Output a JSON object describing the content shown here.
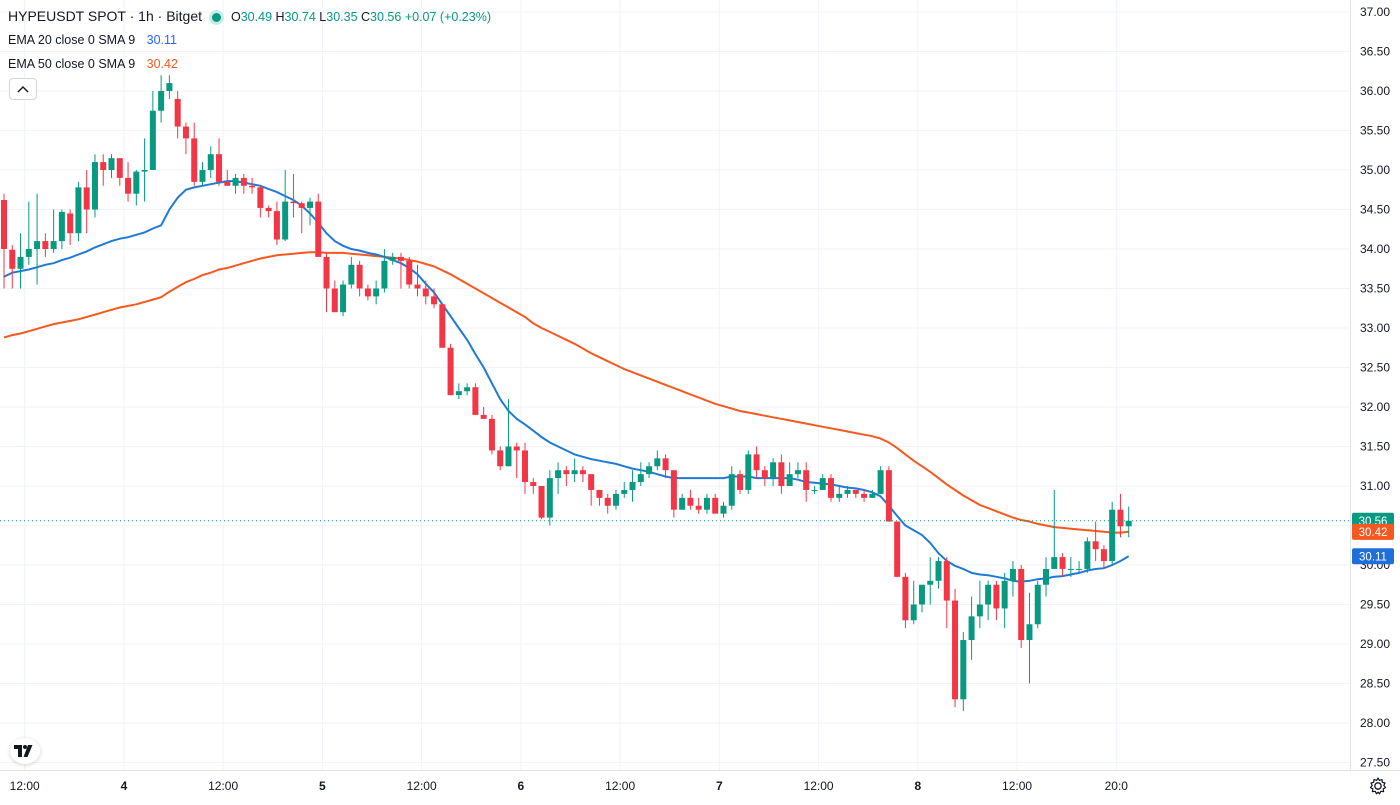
{
  "legend": {
    "symbol": "HYPEUSDT SPOT · 1h · Bitget",
    "o_label": "O",
    "o_value": "30.49",
    "h_label": "H",
    "h_value": "30.74",
    "l_label": "L",
    "l_value": "30.35",
    "c_label": "C",
    "c_value": "30.56",
    "change": "+0.07 (+0.23%)",
    "ema20_label": "EMA 20 close 0 SMA 9",
    "ema20_value": "30.11",
    "ema50_label": "EMA 50 close 0 SMA 9",
    "ema50_value": "30.42"
  },
  "colors": {
    "up": "#089981",
    "down": "#f23645",
    "ema20": "#2962ff",
    "ema20_line": "#1e7ad6",
    "ema50": "#f7581f",
    "grid": "#f0f3fa",
    "text": "#131722"
  },
  "icons": {
    "collapse": "chevron-up-icon",
    "logo": "tradingview-logo-icon",
    "settings": "gear-icon"
  },
  "chart_data": {
    "type": "candlestick",
    "title": "HYPEUSDT SPOT · 1h · Bitget",
    "ylim": [
      27.6,
      37.0
    ],
    "y_ticks": [
      "37.00",
      "36.50",
      "36.00",
      "35.50",
      "35.00",
      "34.50",
      "34.00",
      "33.50",
      "33.00",
      "32.50",
      "32.00",
      "31.50",
      "31.00",
      "30.50",
      "30.00",
      "29.50",
      "29.00",
      "28.50",
      "28.00",
      "27.50"
    ],
    "x_ticks": [
      {
        "index": 2.5,
        "label": "12:00"
      },
      {
        "index": 14.5,
        "label": "4"
      },
      {
        "index": 26.5,
        "label": "12:00"
      },
      {
        "index": 38.5,
        "label": "5"
      },
      {
        "index": 50.5,
        "label": "12:00"
      },
      {
        "index": 62.5,
        "label": "6"
      },
      {
        "index": 74.5,
        "label": "12:00"
      },
      {
        "index": 86.5,
        "label": "7"
      },
      {
        "index": 98.5,
        "label": "12:00"
      },
      {
        "index": 110.5,
        "label": "8"
      },
      {
        "index": 122.5,
        "label": "12:00"
      },
      {
        "index": 134.5,
        "label": "20:0"
      }
    ],
    "price_labels": [
      {
        "value": 30.56,
        "text": "30.56",
        "series": "last"
      },
      {
        "value": 30.42,
        "text": "30.42",
        "series": "ema50"
      },
      {
        "value": 30.11,
        "text": "30.11",
        "series": "ema20"
      }
    ],
    "last_price": 30.56,
    "candles": [
      [
        34.62,
        34.0,
        34.7,
        33.5
      ],
      [
        33.99,
        33.75,
        34.05,
        33.5
      ],
      [
        33.75,
        33.9,
        34.2,
        33.5
      ],
      [
        33.9,
        34.0,
        34.6,
        33.8
      ],
      [
        34.0,
        34.1,
        34.7,
        33.55
      ],
      [
        34.1,
        34.0,
        34.2,
        33.9
      ],
      [
        34.0,
        34.1,
        34.5,
        33.95
      ],
      [
        34.1,
        34.47,
        34.5,
        34.0
      ],
      [
        34.45,
        34.2,
        34.5,
        34.05
      ],
      [
        34.2,
        34.78,
        34.85,
        34.1
      ],
      [
        34.78,
        34.5,
        35.0,
        34.2
      ],
      [
        34.5,
        35.1,
        35.2,
        34.4
      ],
      [
        35.1,
        35.0,
        35.2,
        34.8
      ],
      [
        35.0,
        35.15,
        35.2,
        34.9
      ],
      [
        35.15,
        34.9,
        35.1,
        34.8
      ],
      [
        34.9,
        34.7,
        35.1,
        34.6
      ],
      [
        34.7,
        34.98,
        35.0,
        34.55
      ],
      [
        34.98,
        35.0,
        35.4,
        34.6
      ],
      [
        35.0,
        35.75,
        36.0,
        35.0
      ],
      [
        35.75,
        36.0,
        36.2,
        35.6
      ],
      [
        36.0,
        36.1,
        36.2,
        35.9
      ],
      [
        35.9,
        35.55,
        36.0,
        35.4
      ],
      [
        35.55,
        35.4,
        35.6,
        35.2
      ],
      [
        35.4,
        34.85,
        35.6,
        34.8
      ],
      [
        34.85,
        35.0,
        35.1,
        34.8
      ],
      [
        35.0,
        35.2,
        35.3,
        34.9
      ],
      [
        35.2,
        34.85,
        35.4,
        34.8
      ],
      [
        34.85,
        34.8,
        35.0,
        34.8
      ],
      [
        34.8,
        34.9,
        34.95,
        34.7
      ],
      [
        34.9,
        34.8,
        34.95,
        34.7
      ],
      [
        34.8,
        34.78,
        34.9,
        34.7
      ],
      [
        34.78,
        34.52,
        34.8,
        34.4
      ],
      [
        34.52,
        34.48,
        34.55,
        34.4
      ],
      [
        34.48,
        34.12,
        34.6,
        34.05
      ],
      [
        34.12,
        34.6,
        35.0,
        34.1
      ],
      [
        34.6,
        34.58,
        34.95,
        34.4
      ],
      [
        34.58,
        34.52,
        34.6,
        34.2
      ],
      [
        34.52,
        34.6,
        34.65,
        34.3
      ],
      [
        34.6,
        33.9,
        34.7,
        33.9
      ],
      [
        33.9,
        33.5,
        33.95,
        33.2
      ],
      [
        33.5,
        33.2,
        33.6,
        33.3
      ],
      [
        33.2,
        33.55,
        33.6,
        33.15
      ],
      [
        33.55,
        33.8,
        33.9,
        33.5
      ],
      [
        33.8,
        33.5,
        33.85,
        33.4
      ],
      [
        33.5,
        33.4,
        33.55,
        33.35
      ],
      [
        33.4,
        33.5,
        33.6,
        33.3
      ],
      [
        33.5,
        33.85,
        34.0,
        33.45
      ],
      [
        33.85,
        33.9,
        33.95,
        33.8
      ],
      [
        33.9,
        33.85,
        33.95,
        33.5
      ],
      [
        33.85,
        33.55,
        33.9,
        33.5
      ],
      [
        33.55,
        33.5,
        33.8,
        33.4
      ],
      [
        33.5,
        33.4,
        33.6,
        33.3
      ],
      [
        33.4,
        33.3,
        33.5,
        33.25
      ],
      [
        33.3,
        32.75,
        33.3,
        32.75
      ],
      [
        32.75,
        32.15,
        32.8,
        32.15
      ],
      [
        32.15,
        32.2,
        32.3,
        32.1
      ],
      [
        32.2,
        32.25,
        32.3,
        32.15
      ],
      [
        32.25,
        31.9,
        32.3,
        31.9
      ],
      [
        31.9,
        31.85,
        32.0,
        31.9
      ],
      [
        31.85,
        31.45,
        31.9,
        31.4
      ],
      [
        31.45,
        31.25,
        31.5,
        31.2
      ],
      [
        31.25,
        31.5,
        32.1,
        31.25
      ],
      [
        31.5,
        31.45,
        31.55,
        31.1
      ],
      [
        31.45,
        31.05,
        31.55,
        30.9
      ],
      [
        31.05,
        31.0,
        31.1,
        30.9
      ],
      [
        31.0,
        30.6,
        31.0,
        30.58
      ],
      [
        30.6,
        31.1,
        31.2,
        30.5
      ],
      [
        31.1,
        31.2,
        31.3,
        30.9
      ],
      [
        31.2,
        31.15,
        31.25,
        31.0
      ],
      [
        31.15,
        31.2,
        31.35,
        31.05
      ],
      [
        31.2,
        31.15,
        31.25,
        31.05
      ],
      [
        31.15,
        30.95,
        31.15,
        30.75
      ],
      [
        30.95,
        30.85,
        30.95,
        30.75
      ],
      [
        30.85,
        30.75,
        30.9,
        30.65
      ],
      [
        30.75,
        30.9,
        30.95,
        30.7
      ],
      [
        30.9,
        30.95,
        31.05,
        30.85
      ],
      [
        30.95,
        31.05,
        31.2,
        30.8
      ],
      [
        31.05,
        31.15,
        31.3,
        31.0
      ],
      [
        31.15,
        31.25,
        31.3,
        31.1
      ],
      [
        31.25,
        31.35,
        31.45,
        31.2
      ],
      [
        31.35,
        31.2,
        31.4,
        31.1
      ],
      [
        31.2,
        30.7,
        31.2,
        30.6
      ],
      [
        30.7,
        30.85,
        30.9,
        30.7
      ],
      [
        30.85,
        30.75,
        30.95,
        30.7
      ],
      [
        30.75,
        30.7,
        30.85,
        30.65
      ],
      [
        30.7,
        30.85,
        30.9,
        30.65
      ],
      [
        30.85,
        30.65,
        30.9,
        30.65
      ],
      [
        30.65,
        30.75,
        30.8,
        30.6
      ],
      [
        30.75,
        31.15,
        31.25,
        30.7
      ],
      [
        31.15,
        30.95,
        31.2,
        30.9
      ],
      [
        30.95,
        31.4,
        31.45,
        30.9
      ],
      [
        31.4,
        31.2,
        31.5,
        31.1
      ],
      [
        31.2,
        31.1,
        31.25,
        31.0
      ],
      [
        31.1,
        31.3,
        31.35,
        31.0
      ],
      [
        31.3,
        31.0,
        31.4,
        30.9
      ],
      [
        31.0,
        31.15,
        31.3,
        31.0
      ],
      [
        31.15,
        31.2,
        31.3,
        31.1
      ],
      [
        31.2,
        30.95,
        31.3,
        30.8
      ],
      [
        30.95,
        30.95,
        31.0,
        30.9
      ],
      [
        30.95,
        31.1,
        31.15,
        31.0
      ],
      [
        31.1,
        30.85,
        31.15,
        30.8
      ],
      [
        30.85,
        30.9,
        31.0,
        30.8
      ],
      [
        30.9,
        30.95,
        31.0,
        30.85
      ],
      [
        30.95,
        30.9,
        30.95,
        30.85
      ],
      [
        30.9,
        30.85,
        30.95,
        30.8
      ],
      [
        30.85,
        30.9,
        30.95,
        30.85
      ],
      [
        30.9,
        31.2,
        31.25,
        30.9
      ],
      [
        31.2,
        30.55,
        31.25,
        30.55
      ],
      [
        30.55,
        29.85,
        30.55,
        29.85
      ],
      [
        29.85,
        29.3,
        29.9,
        29.2
      ],
      [
        29.3,
        29.5,
        29.8,
        29.25
      ],
      [
        29.5,
        29.75,
        29.75,
        29.4
      ],
      [
        29.75,
        29.8,
        30.1,
        29.5
      ],
      [
        29.8,
        30.05,
        30.1,
        29.7
      ],
      [
        30.05,
        29.55,
        30.1,
        29.2
      ],
      [
        29.55,
        28.3,
        29.7,
        28.2
      ],
      [
        28.3,
        29.05,
        29.15,
        28.15
      ],
      [
        29.05,
        29.35,
        29.6,
        28.8
      ],
      [
        29.35,
        29.5,
        29.8,
        29.2
      ],
      [
        29.5,
        29.75,
        29.8,
        29.3
      ],
      [
        29.75,
        29.45,
        29.8,
        29.3
      ],
      [
        29.45,
        29.8,
        29.9,
        29.2
      ],
      [
        29.8,
        29.95,
        30.05,
        29.6
      ],
      [
        29.95,
        29.05,
        30.0,
        28.95
      ],
      [
        29.05,
        29.25,
        29.65,
        28.5
      ],
      [
        29.25,
        29.75,
        29.8,
        29.2
      ],
      [
        29.75,
        29.95,
        30.1,
        29.6
      ],
      [
        29.95,
        30.1,
        30.95,
        29.95
      ],
      [
        30.1,
        29.95,
        30.15,
        29.85
      ],
      [
        29.95,
        29.95,
        30.1,
        29.85
      ],
      [
        29.95,
        29.95,
        30.05,
        29.9
      ],
      [
        29.95,
        30.3,
        30.35,
        29.9
      ],
      [
        30.3,
        30.2,
        30.55,
        30.05
      ],
      [
        30.2,
        30.05,
        30.25,
        29.95
      ],
      [
        30.05,
        30.7,
        30.8,
        30.0
      ],
      [
        30.7,
        30.49,
        30.9,
        30.35
      ],
      [
        30.49,
        30.56,
        30.74,
        30.35
      ]
    ],
    "ema20": [
      33.65,
      33.7,
      33.72,
      33.74,
      33.77,
      33.8,
      33.82,
      33.86,
      33.89,
      33.93,
      33.97,
      34.02,
      34.06,
      34.1,
      34.13,
      34.15,
      34.18,
      34.21,
      34.26,
      34.3,
      34.5,
      34.65,
      34.75,
      34.78,
      34.8,
      34.82,
      34.84,
      34.86,
      34.86,
      34.84,
      34.82,
      34.8,
      34.76,
      34.72,
      34.67,
      34.62,
      34.55,
      34.45,
      34.33,
      34.2,
      34.1,
      34.04,
      34.0,
      33.98,
      33.95,
      33.93,
      33.9,
      33.86,
      33.82,
      33.76,
      33.68,
      33.56,
      33.45,
      33.3,
      33.15,
      33.0,
      32.85,
      32.67,
      32.5,
      32.3,
      32.1,
      31.95,
      31.85,
      31.78,
      31.7,
      31.62,
      31.55,
      31.5,
      31.45,
      31.4,
      31.37,
      31.34,
      31.32,
      31.3,
      31.28,
      31.25,
      31.22,
      31.2,
      31.18,
      31.15,
      31.12,
      31.1,
      31.1,
      31.1,
      31.1,
      31.1,
      31.1,
      31.1,
      31.12,
      31.12,
      31.12,
      31.1,
      31.1,
      31.1,
      31.1,
      31.1,
      31.08,
      31.05,
      31.04,
      31.03,
      31.02,
      31.0,
      30.98,
      30.97,
      30.95,
      30.92,
      30.87,
      30.75,
      30.62,
      30.5,
      30.44,
      30.38,
      30.28,
      30.15,
      30.05,
      29.99,
      29.95,
      29.9,
      29.88,
      29.87,
      29.85,
      29.83,
      29.8,
      29.79,
      29.8,
      29.82,
      29.83,
      29.85,
      29.86,
      29.88,
      29.9,
      29.93,
      29.95,
      29.96,
      30.0,
      30.05,
      30.11
    ],
    "ema50": [
      32.88,
      32.91,
      32.93,
      32.96,
      32.99,
      33.02,
      33.05,
      33.07,
      33.09,
      33.11,
      33.14,
      33.17,
      33.2,
      33.23,
      33.26,
      33.28,
      33.3,
      33.33,
      33.36,
      33.39,
      33.46,
      33.52,
      33.58,
      33.62,
      33.67,
      33.7,
      33.74,
      33.76,
      33.79,
      33.82,
      33.85,
      33.88,
      33.9,
      33.92,
      33.93,
      33.94,
      33.95,
      33.96,
      33.96,
      33.95,
      33.95,
      33.95,
      33.94,
      33.93,
      33.92,
      33.91,
      33.9,
      33.89,
      33.88,
      33.86,
      33.84,
      33.81,
      33.78,
      33.73,
      33.68,
      33.62,
      33.56,
      33.5,
      33.44,
      33.38,
      33.32,
      33.26,
      33.2,
      33.14,
      33.06,
      33.0,
      32.95,
      32.9,
      32.85,
      32.8,
      32.74,
      32.68,
      32.63,
      32.58,
      32.53,
      32.48,
      32.44,
      32.4,
      32.36,
      32.32,
      32.28,
      32.24,
      32.2,
      32.16,
      32.12,
      32.08,
      32.04,
      32.01,
      31.98,
      31.95,
      31.93,
      31.91,
      31.89,
      31.87,
      31.85,
      31.83,
      31.81,
      31.79,
      31.77,
      31.75,
      31.73,
      31.71,
      31.69,
      31.67,
      31.65,
      31.63,
      31.6,
      31.55,
      31.48,
      31.4,
      31.32,
      31.25,
      31.18,
      31.1,
      31.02,
      30.95,
      30.88,
      30.82,
      30.76,
      30.72,
      30.68,
      30.64,
      30.6,
      30.57,
      30.55,
      30.52,
      30.5,
      30.48,
      30.47,
      30.46,
      30.45,
      30.44,
      30.43,
      30.42,
      30.41,
      30.41,
      30.42
    ]
  }
}
